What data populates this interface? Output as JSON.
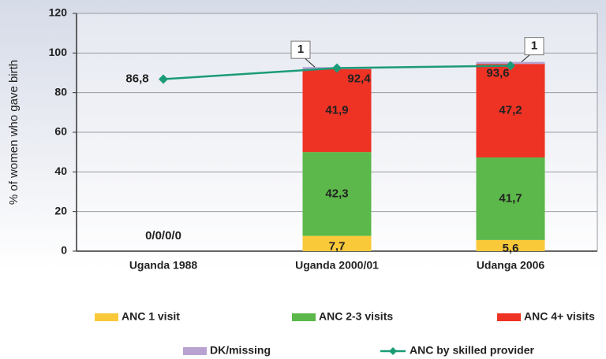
{
  "chart_data": {
    "type": "bar",
    "stacked": true,
    "y_axis_label": "% of women who gave birth",
    "categories": [
      "Uganda 1988",
      "Uganda 2000/01",
      "Udanga 2006"
    ],
    "annotation": "0/0/0/0",
    "ylim": [
      0,
      120
    ],
    "yticks": [
      0,
      20,
      40,
      60,
      80,
      100,
      120
    ],
    "series": [
      {
        "name": "ANC 1 visit",
        "color": "#f9c93a",
        "values": [
          0,
          7.7,
          5.6
        ],
        "value_labels": [
          null,
          "7,7",
          "5,6"
        ]
      },
      {
        "name": "ANC 2-3 visits",
        "color": "#5cb84a",
        "values": [
          0,
          42.3,
          41.7
        ],
        "value_labels": [
          null,
          "42,3",
          "41,7"
        ]
      },
      {
        "name": "ANC 4+ visits",
        "color": "#ee3325",
        "values": [
          0,
          41.9,
          47.2
        ],
        "value_labels": [
          null,
          "41,9",
          "47,2"
        ]
      },
      {
        "name": "DK/missing",
        "color": "#b7a2d2",
        "values": [
          0,
          1,
          1
        ],
        "value_labels": [
          null,
          "1",
          "1"
        ]
      },
      {
        "name": "ANC by skilled provider",
        "type": "line",
        "color": "#1b9b78",
        "values": [
          86.8,
          92.4,
          93.6
        ],
        "value_labels": [
          "86,8",
          "92,4",
          "93,6"
        ]
      }
    ]
  }
}
